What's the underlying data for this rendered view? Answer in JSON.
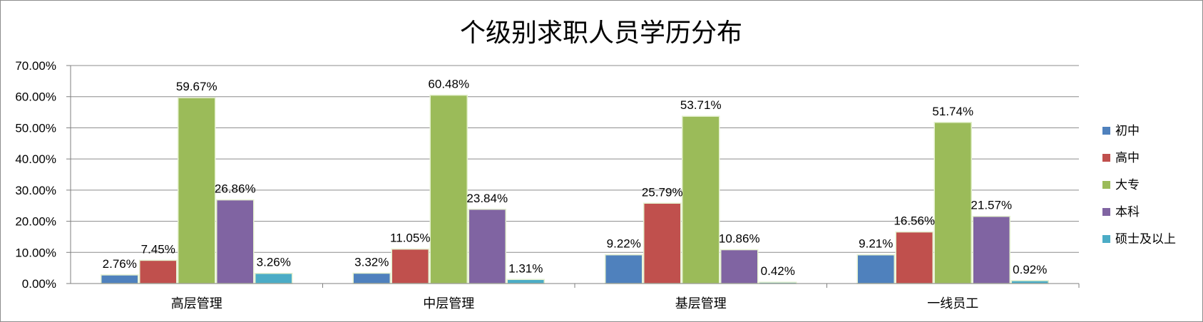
{
  "chart_data": {
    "type": "bar",
    "title": "个级别求职人员学历分布",
    "categories": [
      "高层管理",
      "中层管理",
      "基层管理",
      "一线员工"
    ],
    "series": [
      {
        "name": "初中",
        "color": "#4f81bd",
        "values": [
          2.76,
          3.32,
          9.22,
          9.21
        ],
        "labels": [
          "2.76%",
          "3.32%",
          "9.22%",
          "9.21%"
        ]
      },
      {
        "name": "高中",
        "color": "#c0504d",
        "values": [
          7.45,
          11.05,
          25.79,
          16.56
        ],
        "labels": [
          "7.45%",
          "11.05%",
          "25.79%",
          "16.56%"
        ]
      },
      {
        "name": "大专",
        "color": "#9bbb59",
        "values": [
          59.67,
          60.48,
          53.71,
          51.74
        ],
        "labels": [
          "59.67%",
          "60.48%",
          "53.71%",
          "51.74%"
        ]
      },
      {
        "name": "本科",
        "color": "#8064a2",
        "values": [
          26.86,
          23.84,
          10.86,
          21.57
        ],
        "labels": [
          "26.86%",
          "23.84%",
          "10.86%",
          "21.57%"
        ]
      },
      {
        "name": "硕士及以上",
        "color": "#4bacc6",
        "values": [
          3.26,
          1.31,
          0.42,
          0.92
        ],
        "labels": [
          "3.26%",
          "1.31%",
          "0.42%",
          "0.92%"
        ]
      }
    ],
    "ylim": [
      0,
      70
    ],
    "yticks": [
      "0.00%",
      "10.00%",
      "20.00%",
      "30.00%",
      "40.00%",
      "50.00%",
      "60.00%",
      "70.00%"
    ],
    "xlabel": "",
    "ylabel": "",
    "grid": true,
    "legend_position": "right"
  }
}
